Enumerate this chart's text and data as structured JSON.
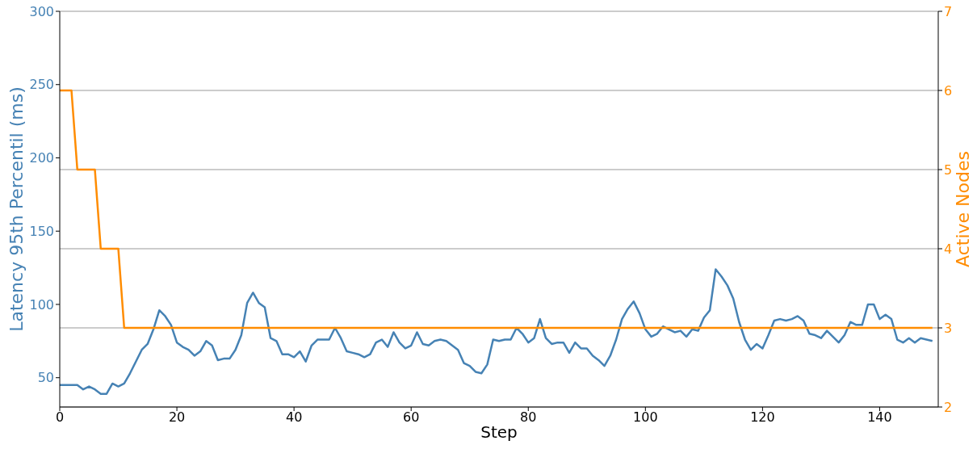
{
  "chart_data": {
    "type": "line",
    "xlabel": "Step",
    "ylabel": "Latency 95th Percentil (ms)",
    "y2label": "Active Nodes",
    "x": [
      0,
      1,
      2,
      3,
      4,
      5,
      6,
      7,
      8,
      9,
      10,
      11,
      12,
      13,
      14,
      15,
      16,
      17,
      18,
      19,
      20,
      21,
      22,
      23,
      24,
      25,
      26,
      27,
      28,
      29,
      30,
      31,
      32,
      33,
      34,
      35,
      36,
      37,
      38,
      39,
      40,
      41,
      42,
      43,
      44,
      45,
      46,
      47,
      48,
      49,
      50,
      51,
      52,
      53,
      54,
      55,
      56,
      57,
      58,
      59,
      60,
      61,
      62,
      63,
      64,
      65,
      66,
      67,
      68,
      69,
      70,
      71,
      72,
      73,
      74,
      75,
      76,
      77,
      78,
      79,
      80,
      81,
      82,
      83,
      84,
      85,
      86,
      87,
      88,
      89,
      90,
      91,
      92,
      93,
      94,
      95,
      96,
      97,
      98,
      99,
      100,
      101,
      102,
      103,
      104,
      105,
      106,
      107,
      108,
      109,
      110,
      111,
      112,
      113,
      114,
      115,
      116,
      117,
      118,
      119,
      120,
      121,
      122,
      123,
      124,
      125,
      126,
      127,
      128,
      129,
      130,
      131,
      132,
      133,
      134,
      135,
      136,
      137,
      138,
      139,
      140,
      141,
      142,
      143,
      144,
      145,
      146,
      147,
      148,
      149
    ],
    "series": [
      {
        "color": "#4682b4",
        "values": [
          45,
          45,
          45,
          45,
          42,
          44,
          42,
          39,
          39,
          46,
          44,
          46,
          53,
          61,
          69,
          73,
          83,
          96,
          92,
          86,
          74,
          71,
          69,
          65,
          68,
          75,
          72,
          62,
          63,
          63,
          69,
          79,
          101,
          108,
          101,
          98,
          77,
          75,
          66,
          66,
          64,
          68,
          61,
          72,
          76,
          76,
          76,
          84,
          77,
          68,
          67,
          66,
          64,
          66,
          74,
          76,
          71,
          81,
          74,
          70,
          72,
          81,
          73,
          72,
          75,
          76,
          75,
          72,
          69,
          60,
          58,
          54,
          53,
          59,
          76,
          75,
          76,
          76,
          84,
          80,
          74,
          77,
          90,
          77,
          73,
          74,
          74,
          67,
          74,
          70,
          70,
          65,
          62,
          58,
          65,
          76,
          90,
          97,
          102,
          94,
          83,
          78,
          80,
          85,
          83,
          81,
          82,
          78,
          83,
          82,
          91,
          96,
          124,
          119,
          113,
          104,
          88,
          76,
          69,
          73,
          70,
          79,
          89,
          90,
          89,
          90,
          92,
          89,
          80,
          79,
          77,
          82,
          78,
          74,
          79,
          88,
          86,
          86,
          100,
          100,
          90,
          93,
          90,
          76,
          74,
          77,
          74,
          77,
          76,
          75
        ]
      },
      {
        "color": "#ff8c00",
        "axis": "y2",
        "values": [
          6,
          6,
          6,
          5,
          5,
          5,
          5,
          4,
          4,
          4,
          4,
          3,
          3,
          3,
          3,
          3,
          3,
          3,
          3,
          3,
          3,
          3,
          3,
          3,
          3,
          3,
          3,
          3,
          3,
          3,
          3,
          3,
          3,
          3,
          3,
          3,
          3,
          3,
          3,
          3,
          3,
          3,
          3,
          3,
          3,
          3,
          3,
          3,
          3,
          3,
          3,
          3,
          3,
          3,
          3,
          3,
          3,
          3,
          3,
          3,
          3,
          3,
          3,
          3,
          3,
          3,
          3,
          3,
          3,
          3,
          3,
          3,
          3,
          3,
          3,
          3,
          3,
          3,
          3,
          3,
          3,
          3,
          3,
          3,
          3,
          3,
          3,
          3,
          3,
          3,
          3,
          3,
          3,
          3,
          3,
          3,
          3,
          3,
          3,
          3,
          3,
          3,
          3,
          3,
          3,
          3,
          3,
          3,
          3,
          3,
          3,
          3,
          3,
          3,
          3,
          3,
          3,
          3,
          3,
          3,
          3,
          3,
          3,
          3,
          3,
          3,
          3,
          3,
          3,
          3,
          3,
          3,
          3,
          3,
          3,
          3,
          3,
          3,
          3,
          3,
          3,
          3,
          3,
          3,
          3,
          3,
          3,
          3,
          3,
          3
        ]
      }
    ],
    "xlim": [
      0,
      150
    ],
    "xticks": [
      0,
      20,
      40,
      60,
      80,
      100,
      120,
      140
    ],
    "ylim": [
      30,
      300
    ],
    "yticks": [
      50,
      100,
      150,
      200,
      250,
      300
    ],
    "y2lim": [
      2,
      7
    ],
    "y2ticks": [
      2,
      3,
      4,
      5,
      6,
      7
    ],
    "grid": "y",
    "legend": false,
    "marker": "none",
    "line_style": "solid"
  }
}
